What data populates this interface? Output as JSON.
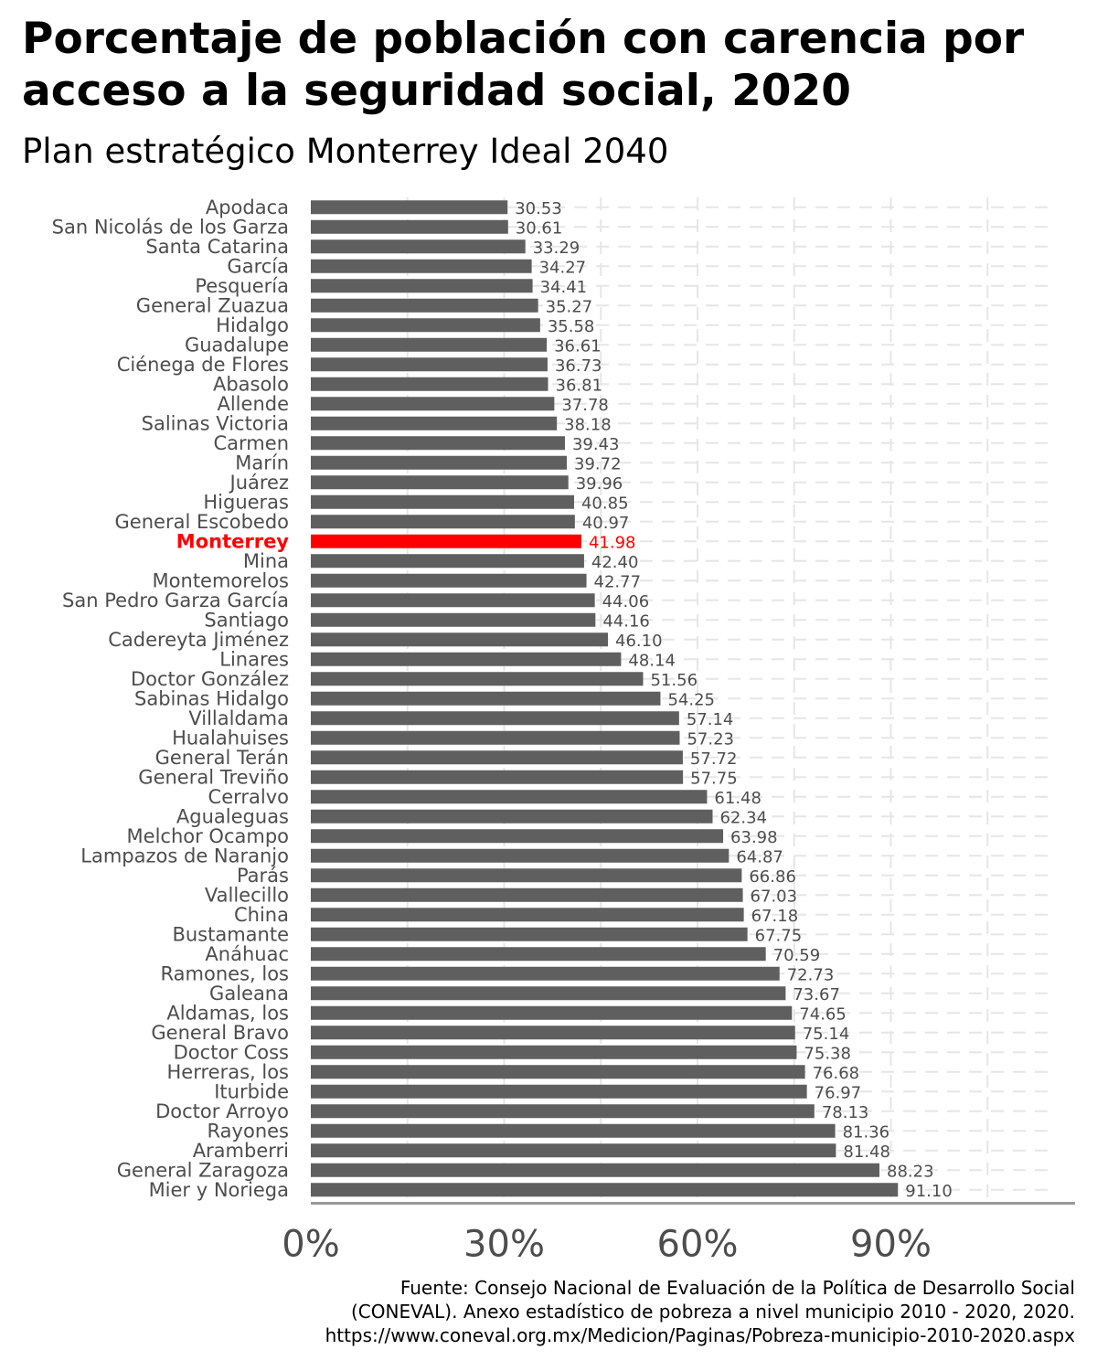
{
  "title_line1": "Porcentaje de población con carencia por",
  "title_line2": "acceso a la seguridad social, 2020",
  "subtitle": "Plan estratégico Monterrey Ideal 2040",
  "caption_line1": "Fuente: Consejo Nacional de Evaluación de la Política de Desarrollo Social",
  "caption_line2": "(CONEVAL). Anexo estadístico de pobreza a nivel municipio 2010 - 2020, 2020.",
  "caption_line3": "https://www.coneval.org.mx/Medicion/Paginas/Pobreza-municipio-2010-2020.aspx",
  "colors": {
    "bar": "#5f5f5f",
    "highlight": "#ff0000",
    "label": "#4d4d4d",
    "grid": "#e6e6e6",
    "axis": "#999999"
  },
  "chart_data": {
    "type": "bar",
    "orientation": "horizontal",
    "highlight": "Monterrey",
    "xlim": [
      0,
      115
    ],
    "xticks": [
      0,
      30,
      60,
      90
    ],
    "xtick_labels": [
      "0%",
      "30%",
      "60%",
      "90%"
    ],
    "grid": "dashed-vertical",
    "categories": [
      "Apodaca",
      "San Nicolás de los Garza",
      "Santa Catarina",
      "García",
      "Pesquería",
      "General Zuazua",
      "Hidalgo",
      "Guadalupe",
      "Ciénega de Flores",
      "Abasolo",
      "Allende",
      "Salinas Victoria",
      "Carmen",
      "Marín",
      "Juárez",
      "Higueras",
      "General Escobedo",
      "Monterrey",
      "Mina",
      "Montemorelos",
      "San Pedro Garza García",
      "Santiago",
      "Cadereyta Jiménez",
      "Linares",
      "Doctor González",
      "Sabinas Hidalgo",
      "Villaldama",
      "Hualahuises",
      "General Terán",
      "General Treviño",
      "Cerralvo",
      "Agualeguas",
      "Melchor Ocampo",
      "Lampazos de Naranjo",
      "Parás",
      "Vallecillo",
      "China",
      "Bustamante",
      "Anáhuac",
      "Ramones, los",
      "Galeana",
      "Aldamas, los",
      "General Bravo",
      "Doctor Coss",
      "Herreras, los",
      "Iturbide",
      "Doctor Arroyo",
      "Rayones",
      "Aramberri",
      "General Zaragoza",
      "Mier y Noriega"
    ],
    "values": [
      30.53,
      30.61,
      33.29,
      34.27,
      34.41,
      35.27,
      35.58,
      36.61,
      36.73,
      36.81,
      37.78,
      38.18,
      39.43,
      39.72,
      39.96,
      40.85,
      40.97,
      41.98,
      42.4,
      42.77,
      44.06,
      44.16,
      46.1,
      48.14,
      51.56,
      54.25,
      57.14,
      57.23,
      57.72,
      57.75,
      61.48,
      62.34,
      63.98,
      64.87,
      66.86,
      67.03,
      67.18,
      67.75,
      70.59,
      72.73,
      73.67,
      74.65,
      75.14,
      75.38,
      76.68,
      76.97,
      78.13,
      81.36,
      81.48,
      88.23,
      91.1
    ],
    "value_labels": [
      "30.53",
      "30.61",
      "33.29",
      "34.27",
      "34.41",
      "35.27",
      "35.58",
      "36.61",
      "36.73",
      "36.81",
      "37.78",
      "38.18",
      "39.43",
      "39.72",
      "39.96",
      "40.85",
      "40.97",
      "41.98",
      "42.40",
      "42.77",
      "44.06",
      "44.16",
      "46.10",
      "48.14",
      "51.56",
      "54.25",
      "57.14",
      "57.23",
      "57.72",
      "57.75",
      "61.48",
      "62.34",
      "63.98",
      "64.87",
      "66.86",
      "67.03",
      "67.18",
      "67.75",
      "70.59",
      "72.73",
      "73.67",
      "74.65",
      "75.14",
      "75.38",
      "76.68",
      "76.97",
      "78.13",
      "81.36",
      "81.48",
      "88.23",
      "91.10"
    ]
  }
}
